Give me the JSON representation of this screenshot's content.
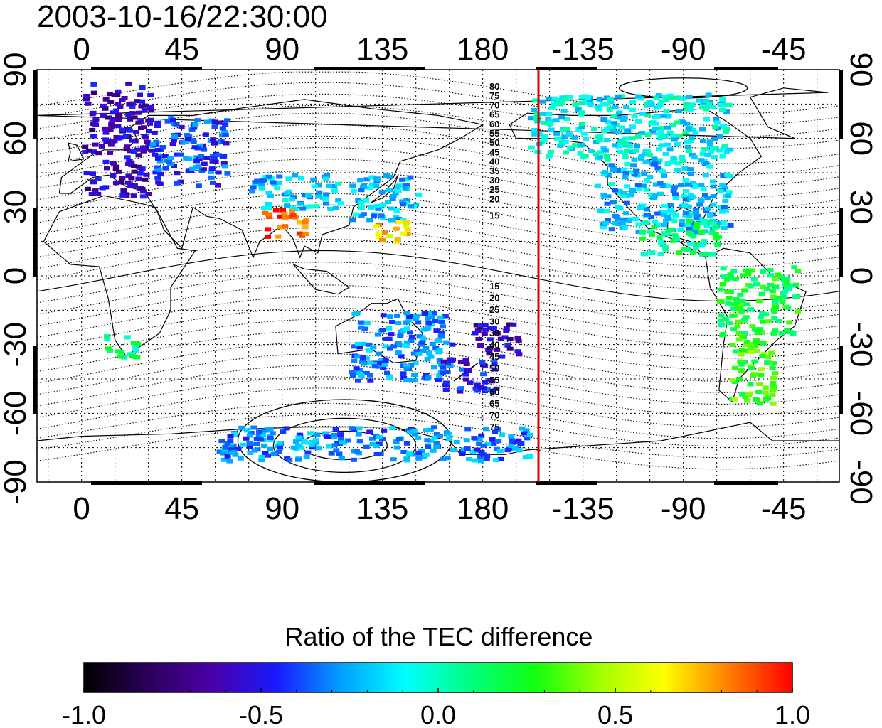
{
  "title": "2003-10-16/22:30:00",
  "map": {
    "lon_ticks": [
      "0",
      "45",
      "90",
      "135",
      "180",
      "-135",
      "-90",
      "-45"
    ],
    "lat_ticks": [
      "90",
      "60",
      "30",
      "0",
      "-30",
      "-60",
      "-90"
    ],
    "lon_range": [
      -20,
      340
    ],
    "lat_range": [
      -90,
      90
    ],
    "terminator_lon": -155,
    "terminator_color": "#dd0000",
    "grid": "dotted"
  },
  "contours": {
    "north_labels": [
      "80",
      "75",
      "70",
      "65",
      "60",
      "55",
      "50",
      "45",
      "40",
      "35",
      "30",
      "25",
      "20",
      "15"
    ],
    "south_labels": [
      "15",
      "20",
      "25",
      "30",
      "35",
      "40",
      "45",
      "50",
      "55",
      "60",
      "65",
      "70",
      "75"
    ]
  },
  "colorbar": {
    "title": "Ratio of the TEC difference",
    "ticks": [
      "-1.0",
      "-0.5",
      "0.0",
      "0.5",
      "1.0"
    ],
    "range": [
      -1.0,
      1.0
    ],
    "colors": [
      "#000000",
      "#2a005a",
      "#4a00a8",
      "#1a1aff",
      "#00a0ff",
      "#00ffff",
      "#00ff80",
      "#10ff10",
      "#a0ff00",
      "#ffff00",
      "#ff8000",
      "#ff0000"
    ]
  },
  "chart_data": {
    "type": "heatmap",
    "title": "2003-10-16/22:30:00",
    "xlabel": "",
    "ylabel": "",
    "xlim": [
      -20,
      340
    ],
    "ylim": [
      -90,
      90
    ],
    "colorbar_label": "Ratio of the TEC difference",
    "colorbar_range": [
      -1.0,
      1.0
    ],
    "regions": [
      {
        "lon": [
          -20,
          30
        ],
        "lat": [
          35,
          85
        ],
        "value": -0.6
      },
      {
        "lon": [
          30,
          65
        ],
        "lat": [
          40,
          70
        ],
        "value": -0.4
      },
      {
        "lon": [
          75,
          115
        ],
        "lat": [
          30,
          45
        ],
        "value": -0.2
      },
      {
        "lon": [
          120,
          150
        ],
        "lat": [
          25,
          45
        ],
        "value": -0.2
      },
      {
        "lon": [
          130,
          145
        ],
        "lat": [
          15,
          25
        ],
        "value": 0.7
      },
      {
        "lon": [
          80,
          100
        ],
        "lat": [
          18,
          30
        ],
        "value": 0.9
      },
      {
        "lon": [
          120,
          165
        ],
        "lat": [
          -45,
          -15
        ],
        "value": -0.3
      },
      {
        "lon": [
          160,
          185
        ],
        "lat": [
          -50,
          -35
        ],
        "value": -0.5
      },
      {
        "lon": [
          175,
          195
        ],
        "lat": [
          -35,
          -20
        ],
        "value": -0.6
      },
      {
        "lon": [
          200,
          290
        ],
        "lat": [
          50,
          80
        ],
        "value": -0.1
      },
      {
        "lon": [
          230,
          290
        ],
        "lat": [
          20,
          50
        ],
        "value": -0.2
      },
      {
        "lon": [
          250,
          285
        ],
        "lat": [
          10,
          25
        ],
        "value": 0.1
      },
      {
        "lon": [
          285,
          320
        ],
        "lat": [
          -25,
          5
        ],
        "value": 0.2
      },
      {
        "lon": [
          290,
          310
        ],
        "lat": [
          -55,
          -25
        ],
        "value": 0.3
      },
      {
        "lon": [
          10,
          25
        ],
        "lat": [
          -35,
          -25
        ],
        "value": 0.1
      },
      {
        "lon": [
          60,
          200
        ],
        "lat": [
          -80,
          -65
        ],
        "value": -0.3
      }
    ]
  }
}
